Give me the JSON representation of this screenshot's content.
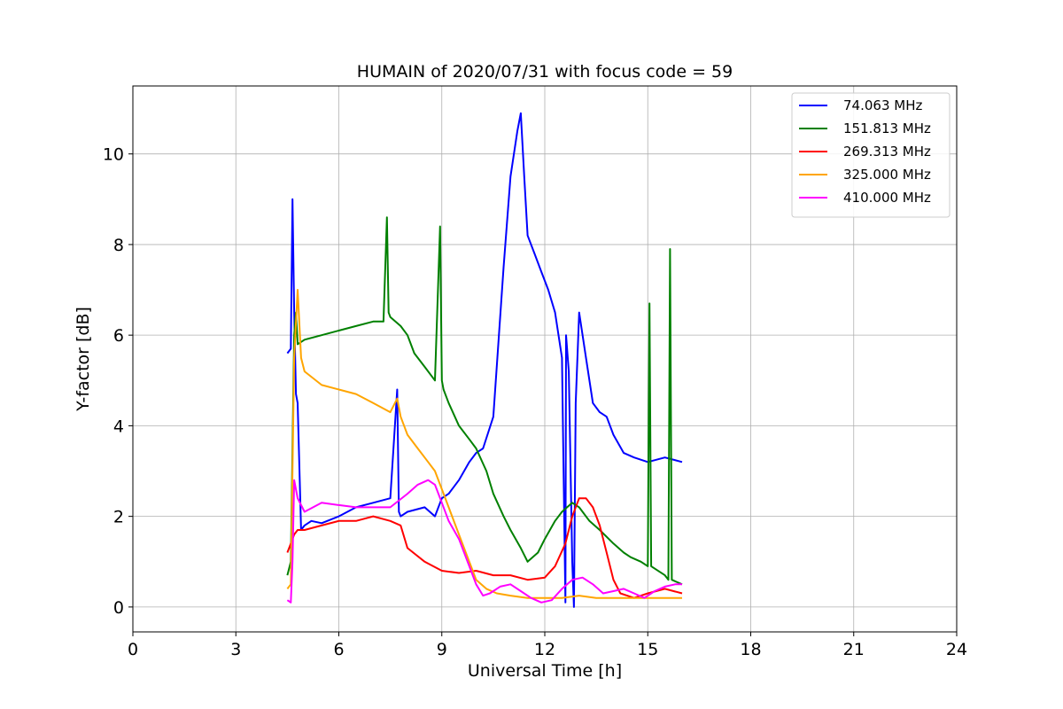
{
  "chart_data": {
    "type": "line",
    "title": "HUMAIN of 2020/07/31 with focus code = 59",
    "xlabel": "Universal Time [h]",
    "ylabel": "Y-factor [dB]",
    "xlim": [
      0,
      24
    ],
    "ylim": [
      -0.55,
      11.5
    ],
    "xticks": [
      0,
      3,
      6,
      9,
      12,
      15,
      18,
      21,
      24
    ],
    "yticks": [
      0,
      2,
      4,
      6,
      8,
      10
    ],
    "grid": true,
    "legend_position": "top-right",
    "series": [
      {
        "name": " 74.063 MHz",
        "color": "#0000ff",
        "x": [
          4.5,
          4.6,
          4.65,
          4.7,
          4.75,
          4.8,
          4.9,
          5.0,
          5.2,
          5.5,
          6.0,
          6.5,
          7.0,
          7.5,
          7.7,
          7.75,
          7.8,
          8.0,
          8.5,
          8.8,
          9.0,
          9.2,
          9.5,
          9.8,
          10.0,
          10.2,
          10.5,
          10.8,
          11.0,
          11.2,
          11.3,
          11.4,
          11.5,
          11.7,
          11.9,
          12.1,
          12.3,
          12.5,
          12.6,
          12.62,
          12.7,
          12.8,
          12.85,
          12.9,
          13.0,
          13.2,
          13.4,
          13.6,
          13.8,
          14.0,
          14.3,
          14.6,
          15.0,
          15.5,
          16.0
        ],
        "y": [
          5.6,
          5.7,
          9.0,
          6.5,
          4.7,
          4.5,
          1.7,
          1.8,
          1.9,
          1.85,
          2.0,
          2.2,
          2.3,
          2.4,
          4.8,
          2.1,
          2.0,
          2.1,
          2.2,
          2.0,
          2.4,
          2.5,
          2.8,
          3.2,
          3.4,
          3.5,
          4.2,
          7.5,
          9.5,
          10.5,
          10.9,
          9.5,
          8.2,
          7.8,
          7.4,
          7.0,
          6.5,
          5.5,
          0.1,
          6.0,
          5.2,
          1.0,
          0.0,
          4.5,
          6.5,
          5.5,
          4.5,
          4.3,
          4.2,
          3.8,
          3.4,
          3.3,
          3.2,
          3.3,
          3.2
        ]
      },
      {
        "name": "151.813 MHz",
        "color": "#008000",
        "x": [
          4.5,
          4.6,
          4.7,
          4.75,
          4.8,
          5.0,
          5.5,
          6.0,
          6.5,
          7.0,
          7.3,
          7.4,
          7.45,
          7.5,
          7.8,
          8.0,
          8.2,
          8.5,
          8.8,
          8.95,
          9.0,
          9.05,
          9.2,
          9.5,
          9.8,
          10.0,
          10.3,
          10.5,
          10.8,
          11.0,
          11.3,
          11.5,
          11.8,
          12.0,
          12.3,
          12.5,
          12.8,
          13.0,
          13.3,
          13.6,
          14.0,
          14.3,
          14.5,
          14.8,
          15.0,
          15.05,
          15.1,
          15.5,
          15.6,
          15.65,
          15.7,
          16.0
        ],
        "y": [
          0.7,
          1.0,
          6.0,
          6.5,
          5.8,
          5.9,
          6.0,
          6.1,
          6.2,
          6.3,
          6.3,
          8.6,
          6.5,
          6.4,
          6.2,
          6.0,
          5.6,
          5.3,
          5.0,
          8.4,
          5.0,
          4.8,
          4.5,
          4.0,
          3.7,
          3.5,
          3.0,
          2.5,
          2.0,
          1.7,
          1.3,
          1.0,
          1.2,
          1.5,
          1.9,
          2.1,
          2.3,
          2.2,
          1.9,
          1.7,
          1.4,
          1.2,
          1.1,
          1.0,
          0.9,
          6.7,
          0.9,
          0.7,
          0.6,
          7.9,
          0.6,
          0.5
        ]
      },
      {
        "name": "269.313 MHz",
        "color": "#ff0000",
        "x": [
          4.5,
          4.6,
          4.7,
          4.8,
          5.0,
          5.5,
          6.0,
          6.5,
          7.0,
          7.5,
          7.8,
          8.0,
          8.5,
          9.0,
          9.5,
          10.0,
          10.5,
          11.0,
          11.5,
          12.0,
          12.3,
          12.6,
          12.8,
          13.0,
          13.2,
          13.4,
          13.6,
          13.8,
          14.0,
          14.2,
          14.4,
          14.6,
          15.0,
          15.5,
          16.0
        ],
        "y": [
          1.2,
          1.4,
          1.6,
          1.7,
          1.7,
          1.8,
          1.9,
          1.9,
          2.0,
          1.9,
          1.8,
          1.3,
          1.0,
          0.8,
          0.75,
          0.8,
          0.7,
          0.7,
          0.6,
          0.65,
          0.9,
          1.4,
          2.0,
          2.4,
          2.4,
          2.2,
          1.8,
          1.2,
          0.6,
          0.3,
          0.25,
          0.2,
          0.3,
          0.4,
          0.3
        ]
      },
      {
        "name": "325.000 MHz",
        "color": "#ffa500",
        "x": [
          4.5,
          4.6,
          4.7,
          4.8,
          4.9,
          5.0,
          5.5,
          6.0,
          6.5,
          7.0,
          7.5,
          7.7,
          7.8,
          8.0,
          8.3,
          8.6,
          8.8,
          9.0,
          9.2,
          9.5,
          9.8,
          10.0,
          10.3,
          10.6,
          11.0,
          11.5,
          12.0,
          12.5,
          13.0,
          13.5,
          14.0,
          14.5,
          15.0,
          15.5,
          16.0
        ],
        "y": [
          0.4,
          0.5,
          5.5,
          7.0,
          5.5,
          5.2,
          4.9,
          4.8,
          4.7,
          4.5,
          4.3,
          4.6,
          4.2,
          3.8,
          3.5,
          3.2,
          3.0,
          2.6,
          2.2,
          1.6,
          1.0,
          0.6,
          0.4,
          0.3,
          0.25,
          0.2,
          0.2,
          0.2,
          0.25,
          0.2,
          0.2,
          0.2,
          0.2,
          0.2,
          0.2
        ]
      },
      {
        "name": "410.000 MHz",
        "color": "#ff00ff",
        "x": [
          4.5,
          4.6,
          4.65,
          4.7,
          4.8,
          5.0,
          5.5,
          6.0,
          6.5,
          7.0,
          7.5,
          8.0,
          8.3,
          8.6,
          8.8,
          9.0,
          9.2,
          9.5,
          9.8,
          10.0,
          10.2,
          10.4,
          10.7,
          11.0,
          11.3,
          11.6,
          11.9,
          12.2,
          12.5,
          12.8,
          13.1,
          13.4,
          13.7,
          14.0,
          14.3,
          14.6,
          14.9,
          15.2,
          15.5,
          15.8,
          16.0
        ],
        "y": [
          0.15,
          0.1,
          1.0,
          2.8,
          2.4,
          2.1,
          2.3,
          2.25,
          2.2,
          2.2,
          2.2,
          2.5,
          2.7,
          2.8,
          2.7,
          2.3,
          1.9,
          1.5,
          0.9,
          0.5,
          0.25,
          0.3,
          0.45,
          0.5,
          0.35,
          0.2,
          0.1,
          0.15,
          0.4,
          0.6,
          0.65,
          0.5,
          0.3,
          0.35,
          0.4,
          0.3,
          0.2,
          0.35,
          0.45,
          0.5,
          0.5
        ]
      }
    ]
  }
}
